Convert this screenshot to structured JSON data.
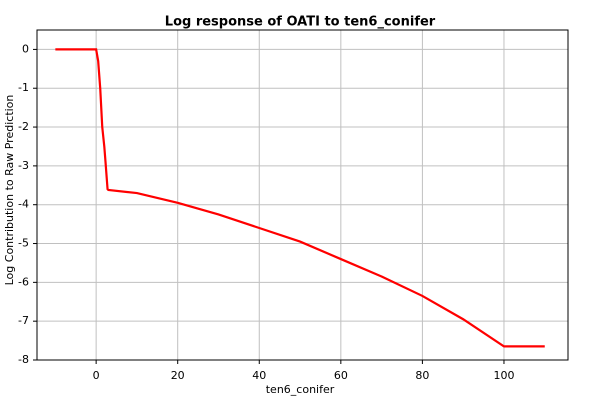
{
  "chart_data": {
    "type": "line",
    "title": "Log response of OATI to ten6_conifer",
    "x_label": "ten6_conifer",
    "y_label": "Log Contribution to Raw Prediction",
    "x": [
      -10,
      -5,
      0,
      0.5,
      1,
      1.5,
      2,
      2.3,
      2.8,
      3,
      10,
      20,
      30,
      40,
      50,
      60,
      70,
      80,
      90,
      100,
      105,
      110
    ],
    "series": [
      {
        "color": "#ff0000",
        "values": [
          0,
          0,
          0,
          -0.3,
          -1,
          -2,
          -2.5,
          -2.9,
          -3.6,
          -3.62,
          -3.7,
          -3.95,
          -4.25,
          -4.6,
          -4.95,
          -5.4,
          -5.85,
          -6.35,
          -6.95,
          -7.65,
          -7.65,
          -7.65
        ]
      }
    ],
    "xlim": [
      -14.5,
      115.7
    ],
    "xticks": [
      0,
      20,
      40,
      60,
      80,
      100
    ],
    "ylim": [
      -8,
      0.5
    ],
    "yticks": [
      0,
      -1,
      -2,
      -3,
      -4,
      -5,
      -6,
      -7,
      -8
    ],
    "grid": true
  }
}
